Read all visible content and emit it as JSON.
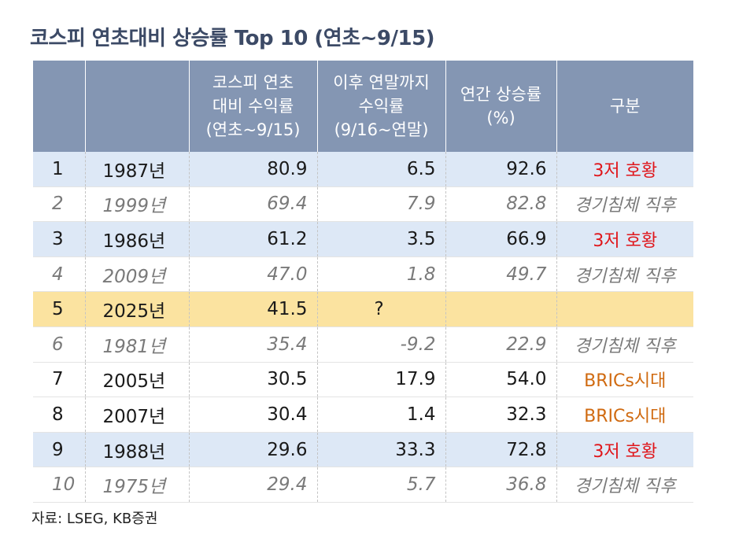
{
  "title": "코스피 연초대비 상승률 Top 10 (연초~9/15)",
  "table": {
    "headers": [
      "",
      "",
      "코스피 연초\n대비 수익률\n(연초~9/15)",
      "이후 연말까지\n수익률\n(9/16~연말)",
      "연간 상승률\n(%)",
      "구분"
    ],
    "rows": [
      {
        "rank": "1",
        "year": "1987년",
        "ytd": "80.9",
        "rest": "6.5",
        "annual": "92.6",
        "category": "3저 호황"
      },
      {
        "rank": "2",
        "year": "1999년",
        "ytd": "69.4",
        "rest": "7.9",
        "annual": "82.8",
        "category": "경기침체 직후"
      },
      {
        "rank": "3",
        "year": "1986년",
        "ytd": "61.2",
        "rest": "3.5",
        "annual": "66.9",
        "category": "3저 호황"
      },
      {
        "rank": "4",
        "year": "2009년",
        "ytd": "47.0",
        "rest": "1.8",
        "annual": "49.7",
        "category": "경기침체 직후"
      },
      {
        "rank": "5",
        "year": "2025년",
        "ytd": "41.5",
        "rest": "?",
        "annual": "",
        "category": ""
      },
      {
        "rank": "6",
        "year": "1981년",
        "ytd": "35.4",
        "rest": "-9.2",
        "annual": "22.9",
        "category": "경기침체 직후"
      },
      {
        "rank": "7",
        "year": "2005년",
        "ytd": "30.5",
        "rest": "17.9",
        "annual": "54.0",
        "category": "BRICs시대"
      },
      {
        "rank": "8",
        "year": "2007년",
        "ytd": "30.4",
        "rest": "1.4",
        "annual": "32.3",
        "category": "BRICs시대"
      },
      {
        "rank": "9",
        "year": "1988년",
        "ytd": "29.6",
        "rest": "33.3",
        "annual": "72.8",
        "category": "3저 호황"
      },
      {
        "rank": "10",
        "year": "1975년",
        "ytd": "29.4",
        "rest": "5.7",
        "annual": "36.8",
        "category": "경기침체 직후"
      }
    ]
  },
  "source": "자료: LSEG, KB증권",
  "colors": {
    "header_bg": "#8496b3",
    "highlight_blue": "#dde8f6",
    "highlight_gold": "#fbe3a0",
    "category_red": "#e0161b",
    "category_orange": "#d06a10",
    "italic_gray": "#7a7a7a"
  }
}
